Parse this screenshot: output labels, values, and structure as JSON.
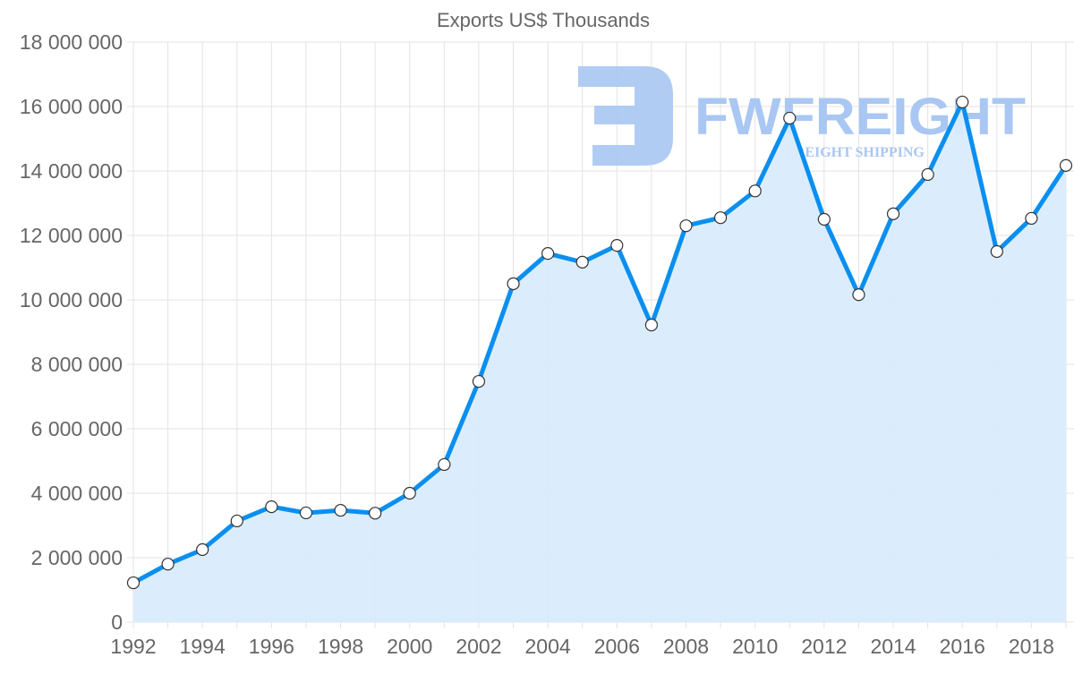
{
  "chart_data": {
    "type": "area",
    "title": "Exports US$ Thousands",
    "xlabel": "",
    "ylabel": "",
    "x": [
      1992,
      1993,
      1994,
      1995,
      1996,
      1997,
      1998,
      1999,
      2000,
      2001,
      2002,
      2003,
      2004,
      2005,
      2006,
      2007,
      2008,
      2009,
      2010,
      2011,
      2012,
      2013,
      2014,
      2015,
      2016,
      2017,
      2018,
      2019
    ],
    "series": [
      {
        "name": "Exports",
        "values": [
          1220000,
          1800000,
          2250000,
          3140000,
          3580000,
          3390000,
          3470000,
          3380000,
          4000000,
          4890000,
          7470000,
          10500000,
          11440000,
          11170000,
          11690000,
          9220000,
          12300000,
          12550000,
          13380000,
          15640000,
          12500000,
          10160000,
          12670000,
          13890000,
          16140000,
          11500000,
          12530000,
          14170000
        ]
      }
    ],
    "ylim": [
      0,
      18000000
    ],
    "y_ticks": [
      0,
      2000000,
      4000000,
      6000000,
      8000000,
      10000000,
      12000000,
      14000000,
      16000000,
      18000000
    ],
    "y_tick_labels": [
      "0",
      "2 000 000",
      "4 000 000",
      "6 000 000",
      "8 000 000",
      "10 000 000",
      "12 000 000",
      "14 000 000",
      "16 000 000",
      "18 000 000"
    ],
    "x_tick_labels": [
      "1992",
      "1994",
      "1996",
      "1998",
      "2000",
      "2002",
      "2004",
      "2006",
      "2008",
      "2010",
      "2012",
      "2014",
      "2016",
      "2018"
    ],
    "grid": true,
    "legend": null,
    "colors": {
      "line": "#0a8ff0",
      "fill": "#d9ecfc",
      "point_fill": "#ffffff",
      "point_stroke": "#333333"
    }
  },
  "watermark": {
    "brand": "FWFREIGHT",
    "tagline": "FREIGHT SHIPPING",
    "color": "#a9c7f2"
  }
}
